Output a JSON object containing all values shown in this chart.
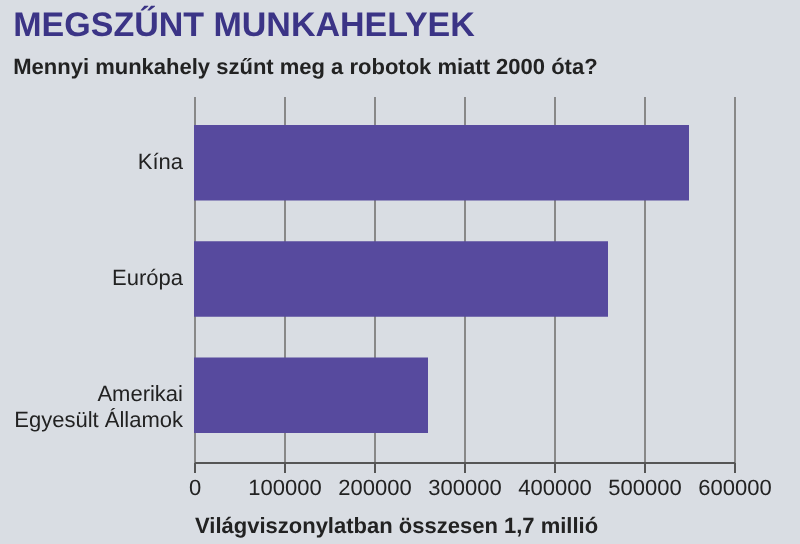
{
  "chart_data": {
    "type": "bar",
    "orientation": "horizontal",
    "title": "MEGSZŰNT MUNKAHELYEK",
    "subtitle": "Mennyi munkahely szűnt meg a robotok miatt 2000 óta?",
    "xlabel": "Világviszonylatban összesen 1,7 millió",
    "categories": [
      "Kína",
      "Európa",
      "Amerikai Egyesült Államok"
    ],
    "values": [
      550000,
      460000,
      260000
    ],
    "color": "#574a9e",
    "xlim": [
      0,
      600000
    ],
    "xticks": [
      0,
      100000,
      200000,
      300000,
      400000,
      500000,
      600000
    ],
    "grid": "x"
  }
}
